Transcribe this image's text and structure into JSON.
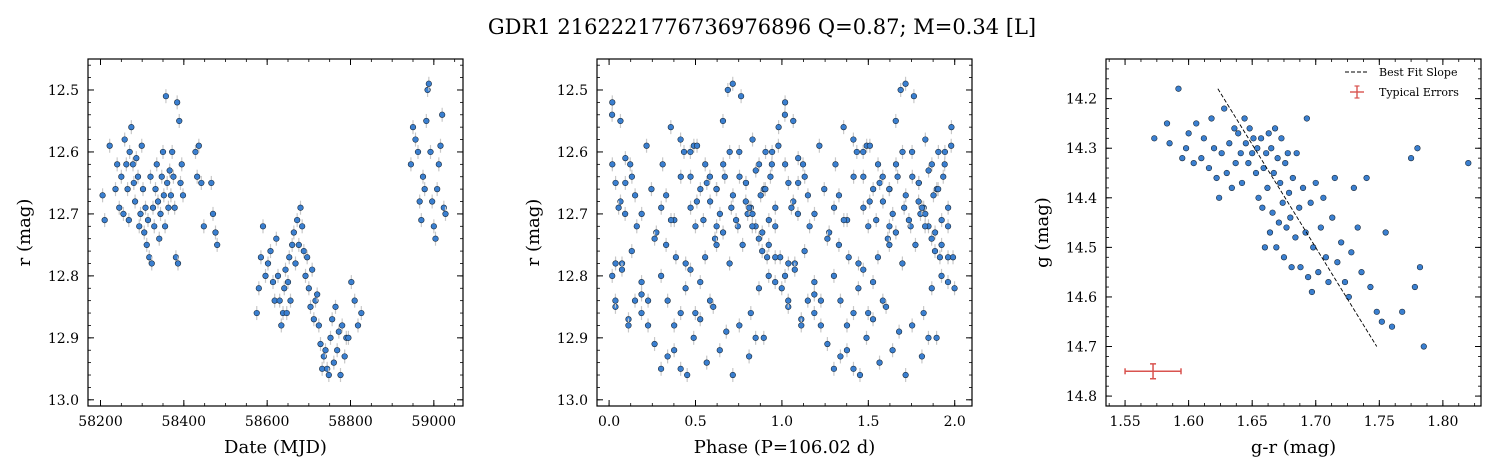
{
  "figure": {
    "title": "GDR1 2162221776736976896  Q=0.87; M=0.34 [L]",
    "marker_color": "#3a7fd0",
    "marker_edge": "#1a2a3a",
    "error_color": "#c8c8c8"
  },
  "chart_data": [
    {
      "type": "scatter",
      "title": "",
      "xlabel": "Date (MJD)",
      "ylabel": "r (mag)",
      "xlim": [
        58170,
        59070
      ],
      "ylim": [
        13.01,
        12.45
      ],
      "y_inverted": true,
      "xticks": [
        58200,
        58400,
        58600,
        58800,
        59000
      ],
      "yticks": [
        12.5,
        12.6,
        12.7,
        12.8,
        12.9,
        13.0
      ],
      "xtick_labels": [
        "58200",
        "58400",
        "58600",
        "58800",
        "59000"
      ],
      "ytick_labels": [
        "12.5",
        "12.6",
        "12.7",
        "12.8",
        "12.9",
        "13.0"
      ],
      "points": [
        [
          58205,
          12.67
        ],
        [
          58210,
          12.71
        ],
        [
          58222,
          12.59
        ],
        [
          58236,
          12.66
        ],
        [
          58240,
          12.62
        ],
        [
          58245,
          12.69
        ],
        [
          58250,
          12.64
        ],
        [
          58255,
          12.7
        ],
        [
          58258,
          12.58
        ],
        [
          58262,
          12.62
        ],
        [
          58265,
          12.66
        ],
        [
          58268,
          12.71
        ],
        [
          58270,
          12.6
        ],
        [
          58274,
          12.56
        ],
        [
          58278,
          12.62
        ],
        [
          58280,
          12.65
        ],
        [
          58283,
          12.68
        ],
        [
          58286,
          12.61
        ],
        [
          58290,
          12.64
        ],
        [
          58293,
          12.72
        ],
        [
          58296,
          12.7
        ],
        [
          58299,
          12.59
        ],
        [
          58302,
          12.66
        ],
        [
          58305,
          12.73
        ],
        [
          58308,
          12.69
        ],
        [
          58311,
          12.75
        ],
        [
          58314,
          12.71
        ],
        [
          58317,
          12.77
        ],
        [
          58320,
          12.64
        ],
        [
          58323,
          12.78
        ],
        [
          58326,
          12.69
        ],
        [
          58329,
          12.72
        ],
        [
          58332,
          12.66
        ],
        [
          58335,
          12.62
        ],
        [
          58338,
          12.68
        ],
        [
          58341,
          12.74
        ],
        [
          58344,
          12.7
        ],
        [
          58347,
          12.64
        ],
        [
          58350,
          12.6
        ],
        [
          58352,
          12.67
        ],
        [
          58355,
          12.72
        ],
        [
          58357,
          12.51
        ],
        [
          58360,
          12.65
        ],
        [
          58363,
          12.69
        ],
        [
          58366,
          12.63
        ],
        [
          58369,
          12.67
        ],
        [
          58372,
          12.6
        ],
        [
          58375,
          12.64
        ],
        [
          58378,
          12.69
        ],
        [
          58381,
          12.77
        ],
        [
          58384,
          12.52
        ],
        [
          58386,
          12.78
        ],
        [
          58389,
          12.55
        ],
        [
          58392,
          12.65
        ],
        [
          58395,
          12.62
        ],
        [
          58398,
          12.67
        ],
        [
          58428,
          12.6
        ],
        [
          58432,
          12.64
        ],
        [
          58436,
          12.59
        ],
        [
          58442,
          12.65
        ],
        [
          58448,
          12.72
        ],
        [
          58466,
          12.65
        ],
        [
          58470,
          12.7
        ],
        [
          58476,
          12.73
        ],
        [
          58480,
          12.75
        ],
        [
          58575,
          12.86
        ],
        [
          58580,
          12.82
        ],
        [
          58585,
          12.77
        ],
        [
          58590,
          12.72
        ],
        [
          58596,
          12.8
        ],
        [
          58602,
          12.78
        ],
        [
          58608,
          12.76
        ],
        [
          58614,
          12.81
        ],
        [
          58618,
          12.84
        ],
        [
          58622,
          12.74
        ],
        [
          58626,
          12.8
        ],
        [
          58630,
          12.84
        ],
        [
          58634,
          12.88
        ],
        [
          58638,
          12.86
        ],
        [
          58641,
          12.82
        ],
        [
          58644,
          12.79
        ],
        [
          58647,
          12.86
        ],
        [
          58650,
          12.81
        ],
        [
          58653,
          12.77
        ],
        [
          58656,
          12.84
        ],
        [
          58660,
          12.75
        ],
        [
          58664,
          12.73
        ],
        [
          58668,
          12.78
        ],
        [
          58672,
          12.71
        ],
        [
          58676,
          12.75
        ],
        [
          58680,
          12.69
        ],
        [
          58684,
          12.72
        ],
        [
          58688,
          12.76
        ],
        [
          58692,
          12.8
        ],
        [
          58696,
          12.77
        ],
        [
          58700,
          12.82
        ],
        [
          58704,
          12.85
        ],
        [
          58708,
          12.79
        ],
        [
          58712,
          12.87
        ],
        [
          58716,
          12.84
        ],
        [
          58720,
          12.83
        ],
        [
          58724,
          12.88
        ],
        [
          58728,
          12.91
        ],
        [
          58732,
          12.95
        ],
        [
          58736,
          12.93
        ],
        [
          58740,
          12.92
        ],
        [
          58744,
          12.95
        ],
        [
          58748,
          12.96
        ],
        [
          58752,
          12.9
        ],
        [
          58756,
          12.87
        ],
        [
          58760,
          12.94
        ],
        [
          58764,
          12.85
        ],
        [
          58768,
          12.92
        ],
        [
          58772,
          12.89
        ],
        [
          58776,
          12.96
        ],
        [
          58780,
          12.88
        ],
        [
          58786,
          12.93
        ],
        [
          58790,
          12.9
        ],
        [
          58795,
          12.9
        ],
        [
          58802,
          12.81
        ],
        [
          58810,
          12.84
        ],
        [
          58818,
          12.88
        ],
        [
          58826,
          12.86
        ],
        [
          58945,
          12.62
        ],
        [
          58950,
          12.56
        ],
        [
          58956,
          12.58
        ],
        [
          58962,
          12.6
        ],
        [
          58966,
          12.68
        ],
        [
          58970,
          12.71
        ],
        [
          58974,
          12.64
        ],
        [
          58978,
          12.66
        ],
        [
          58982,
          12.55
        ],
        [
          58985,
          12.5
        ],
        [
          58988,
          12.49
        ],
        [
          58992,
          12.6
        ],
        [
          58996,
          12.68
        ],
        [
          59000,
          12.72
        ],
        [
          59004,
          12.74
        ],
        [
          59008,
          12.66
        ],
        [
          59012,
          12.62
        ],
        [
          59016,
          12.59
        ],
        [
          59020,
          12.54
        ],
        [
          59024,
          12.69
        ],
        [
          59028,
          12.7
        ]
      ]
    },
    {
      "type": "scatter",
      "title": "",
      "xlabel": "Phase (P=106.02 d)",
      "ylabel": "r (mag)",
      "xlim": [
        -0.07,
        2.1
      ],
      "ylim": [
        13.01,
        12.45
      ],
      "y_inverted": true,
      "period_days": 106.02,
      "t0": 58170,
      "xticks": [
        0.0,
        0.5,
        1.0,
        1.5,
        2.0
      ],
      "yticks": [
        12.5,
        12.6,
        12.7,
        12.8,
        12.9,
        13.0
      ],
      "xtick_labels": [
        "0.0",
        "0.5",
        "1.0",
        "1.5",
        "2.0"
      ],
      "ytick_labels": [
        "12.5",
        "12.6",
        "12.7",
        "12.8",
        "12.9",
        "13.0"
      ],
      "points": "phase-folded r-band magnitudes from panel 1, plotted twice over two cycles"
    },
    {
      "type": "scatter",
      "title": "",
      "xlabel": "g-r (mag)",
      "ylabel": "g (mag)",
      "xlim": [
        1.535,
        1.83
      ],
      "ylim": [
        14.82,
        14.12
      ],
      "y_inverted": true,
      "xticks": [
        1.55,
        1.6,
        1.65,
        1.7,
        1.75,
        1.8
      ],
      "yticks": [
        14.2,
        14.3,
        14.4,
        14.5,
        14.6,
        14.7,
        14.8
      ],
      "xtick_labels": [
        "1.55",
        "1.60",
        "1.65",
        "1.70",
        "1.75",
        "1.80"
      ],
      "ytick_labels": [
        "14.2",
        "14.3",
        "14.4",
        "14.5",
        "14.6",
        "14.7",
        "14.8"
      ],
      "best_fit_line": [
        [
          1.623,
          14.18
        ],
        [
          1.748,
          14.7
        ]
      ],
      "typical_error": {
        "x": 1.572,
        "y": 14.75,
        "xerr": 0.022,
        "yerr": 0.015,
        "color": "#d9534f"
      },
      "legend": {
        "placement": "top-right",
        "entries": [
          "Best Fit Slope",
          "Typical Errors"
        ]
      },
      "points": [
        [
          1.573,
          14.28
        ],
        [
          1.583,
          14.25
        ],
        [
          1.585,
          14.29
        ],
        [
          1.592,
          14.18
        ],
        [
          1.595,
          14.32
        ],
        [
          1.598,
          14.3
        ],
        [
          1.6,
          14.27
        ],
        [
          1.604,
          14.33
        ],
        [
          1.606,
          14.25
        ],
        [
          1.61,
          14.32
        ],
        [
          1.612,
          14.28
        ],
        [
          1.616,
          14.34
        ],
        [
          1.618,
          14.24
        ],
        [
          1.62,
          14.3
        ],
        [
          1.622,
          14.36
        ],
        [
          1.624,
          14.4
        ],
        [
          1.626,
          14.31
        ],
        [
          1.628,
          14.22
        ],
        [
          1.63,
          14.35
        ],
        [
          1.632,
          14.29
        ],
        [
          1.634,
          14.38
        ],
        [
          1.636,
          14.26
        ],
        [
          1.637,
          14.33
        ],
        [
          1.639,
          14.27
        ],
        [
          1.641,
          14.31
        ],
        [
          1.642,
          14.37
        ],
        [
          1.644,
          14.24
        ],
        [
          1.645,
          14.29
        ],
        [
          1.647,
          14.33
        ],
        [
          1.648,
          14.26
        ],
        [
          1.65,
          14.31
        ],
        [
          1.651,
          14.28
        ],
        [
          1.653,
          14.35
        ],
        [
          1.654,
          14.3
        ],
        [
          1.655,
          14.4
        ],
        [
          1.657,
          14.28
        ],
        [
          1.658,
          14.42
        ],
        [
          1.659,
          14.34
        ],
        [
          1.66,
          14.5
        ],
        [
          1.661,
          14.31
        ],
        [
          1.662,
          14.38
        ],
        [
          1.663,
          14.27
        ],
        [
          1.664,
          14.47
        ],
        [
          1.665,
          14.3
        ],
        [
          1.666,
          14.43
        ],
        [
          1.667,
          14.35
        ],
        [
          1.668,
          14.26
        ],
        [
          1.669,
          14.5
        ],
        [
          1.67,
          14.32
        ],
        [
          1.671,
          14.45
        ],
        [
          1.672,
          14.37
        ],
        [
          1.673,
          14.28
        ],
        [
          1.674,
          14.41
        ],
        [
          1.675,
          14.52
        ],
        [
          1.676,
          14.33
        ],
        [
          1.677,
          14.46
        ],
        [
          1.678,
          14.31
        ],
        [
          1.679,
          14.39
        ],
        [
          1.68,
          14.44
        ],
        [
          1.681,
          14.54
        ],
        [
          1.682,
          14.36
        ],
        [
          1.684,
          14.48
        ],
        [
          1.685,
          14.31
        ],
        [
          1.687,
          14.42
        ],
        [
          1.688,
          14.54
        ],
        [
          1.69,
          14.38
        ],
        [
          1.692,
          14.47
        ],
        [
          1.693,
          14.24
        ],
        [
          1.694,
          14.56
        ],
        [
          1.696,
          14.41
        ],
        [
          1.697,
          14.59
        ],
        [
          1.698,
          14.5
        ],
        [
          1.7,
          14.37
        ],
        [
          1.702,
          14.55
        ],
        [
          1.704,
          14.46
        ],
        [
          1.706,
          14.4
        ],
        [
          1.708,
          14.52
        ],
        [
          1.71,
          14.57
        ],
        [
          1.713,
          14.44
        ],
        [
          1.715,
          14.36
        ],
        [
          1.717,
          14.53
        ],
        [
          1.72,
          14.49
        ],
        [
          1.723,
          14.57
        ],
        [
          1.726,
          14.6
        ],
        [
          1.728,
          14.51
        ],
        [
          1.73,
          14.38
        ],
        [
          1.733,
          14.46
        ],
        [
          1.736,
          14.55
        ],
        [
          1.74,
          14.36
        ],
        [
          1.743,
          14.58
        ],
        [
          1.748,
          14.63
        ],
        [
          1.752,
          14.65
        ],
        [
          1.755,
          14.47
        ],
        [
          1.76,
          14.66
        ],
        [
          1.768,
          14.63
        ],
        [
          1.775,
          14.32
        ],
        [
          1.778,
          14.58
        ],
        [
          1.78,
          14.3
        ],
        [
          1.782,
          14.54
        ],
        [
          1.785,
          14.7
        ],
        [
          1.82,
          14.33
        ]
      ]
    }
  ]
}
